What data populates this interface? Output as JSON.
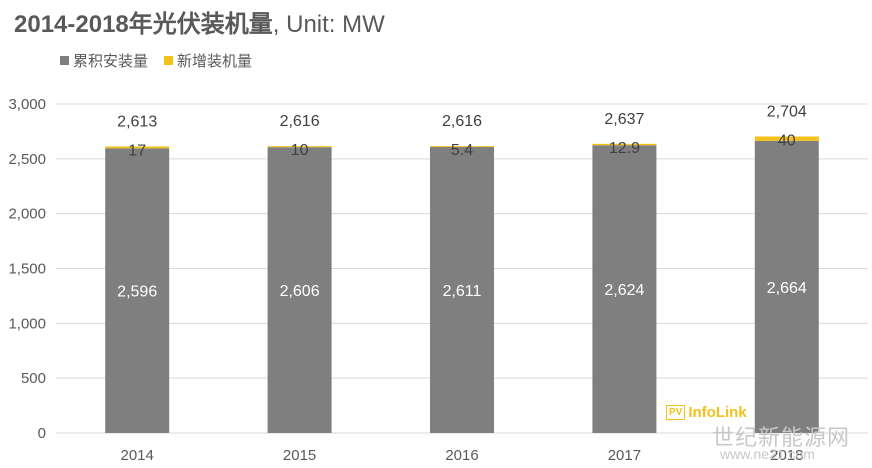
{
  "title": {
    "main": "2014-2018年光伏装机量",
    "unit": ", Unit: MW"
  },
  "colors": {
    "cumulative": "#7f7f7f",
    "added": "#f2c21b",
    "grid": "#d9d9d9",
    "text": "#595959"
  },
  "logo": {
    "badge": "PV",
    "text": "InfoLink"
  },
  "watermark": {
    "text": "世纪新能源网",
    "url": "www.ne21.com"
  },
  "chart_data": {
    "type": "bar",
    "stacked": true,
    "categories": [
      "2014",
      "2015",
      "2016",
      "2017",
      "2018"
    ],
    "series": [
      {
        "name": "累积安装量",
        "values": [
          2596,
          2606,
          2611,
          2624,
          2664
        ],
        "labels": [
          "2,596",
          "2,606",
          "2,611",
          "2,624",
          "2,664"
        ]
      },
      {
        "name": "新增装机量",
        "values": [
          17,
          10,
          5.4,
          12.9,
          40
        ],
        "labels": [
          "17",
          "10",
          "5.4",
          "12.9",
          "40"
        ]
      }
    ],
    "totals": [
      "2,613",
      "2,616",
      "2,616",
      "2,637",
      "2,704"
    ],
    "total_values": [
      2613,
      2616,
      2616,
      2637,
      2704
    ],
    "ylim": [
      0,
      3000
    ],
    "yticks": [
      0,
      500,
      1000,
      1500,
      2000,
      2500,
      3000
    ],
    "ytick_labels": [
      "0",
      "500",
      "1,000",
      "1,500",
      "2,000",
      "2,500",
      "3,000"
    ],
    "grid": true,
    "legend_position": "top-left"
  }
}
